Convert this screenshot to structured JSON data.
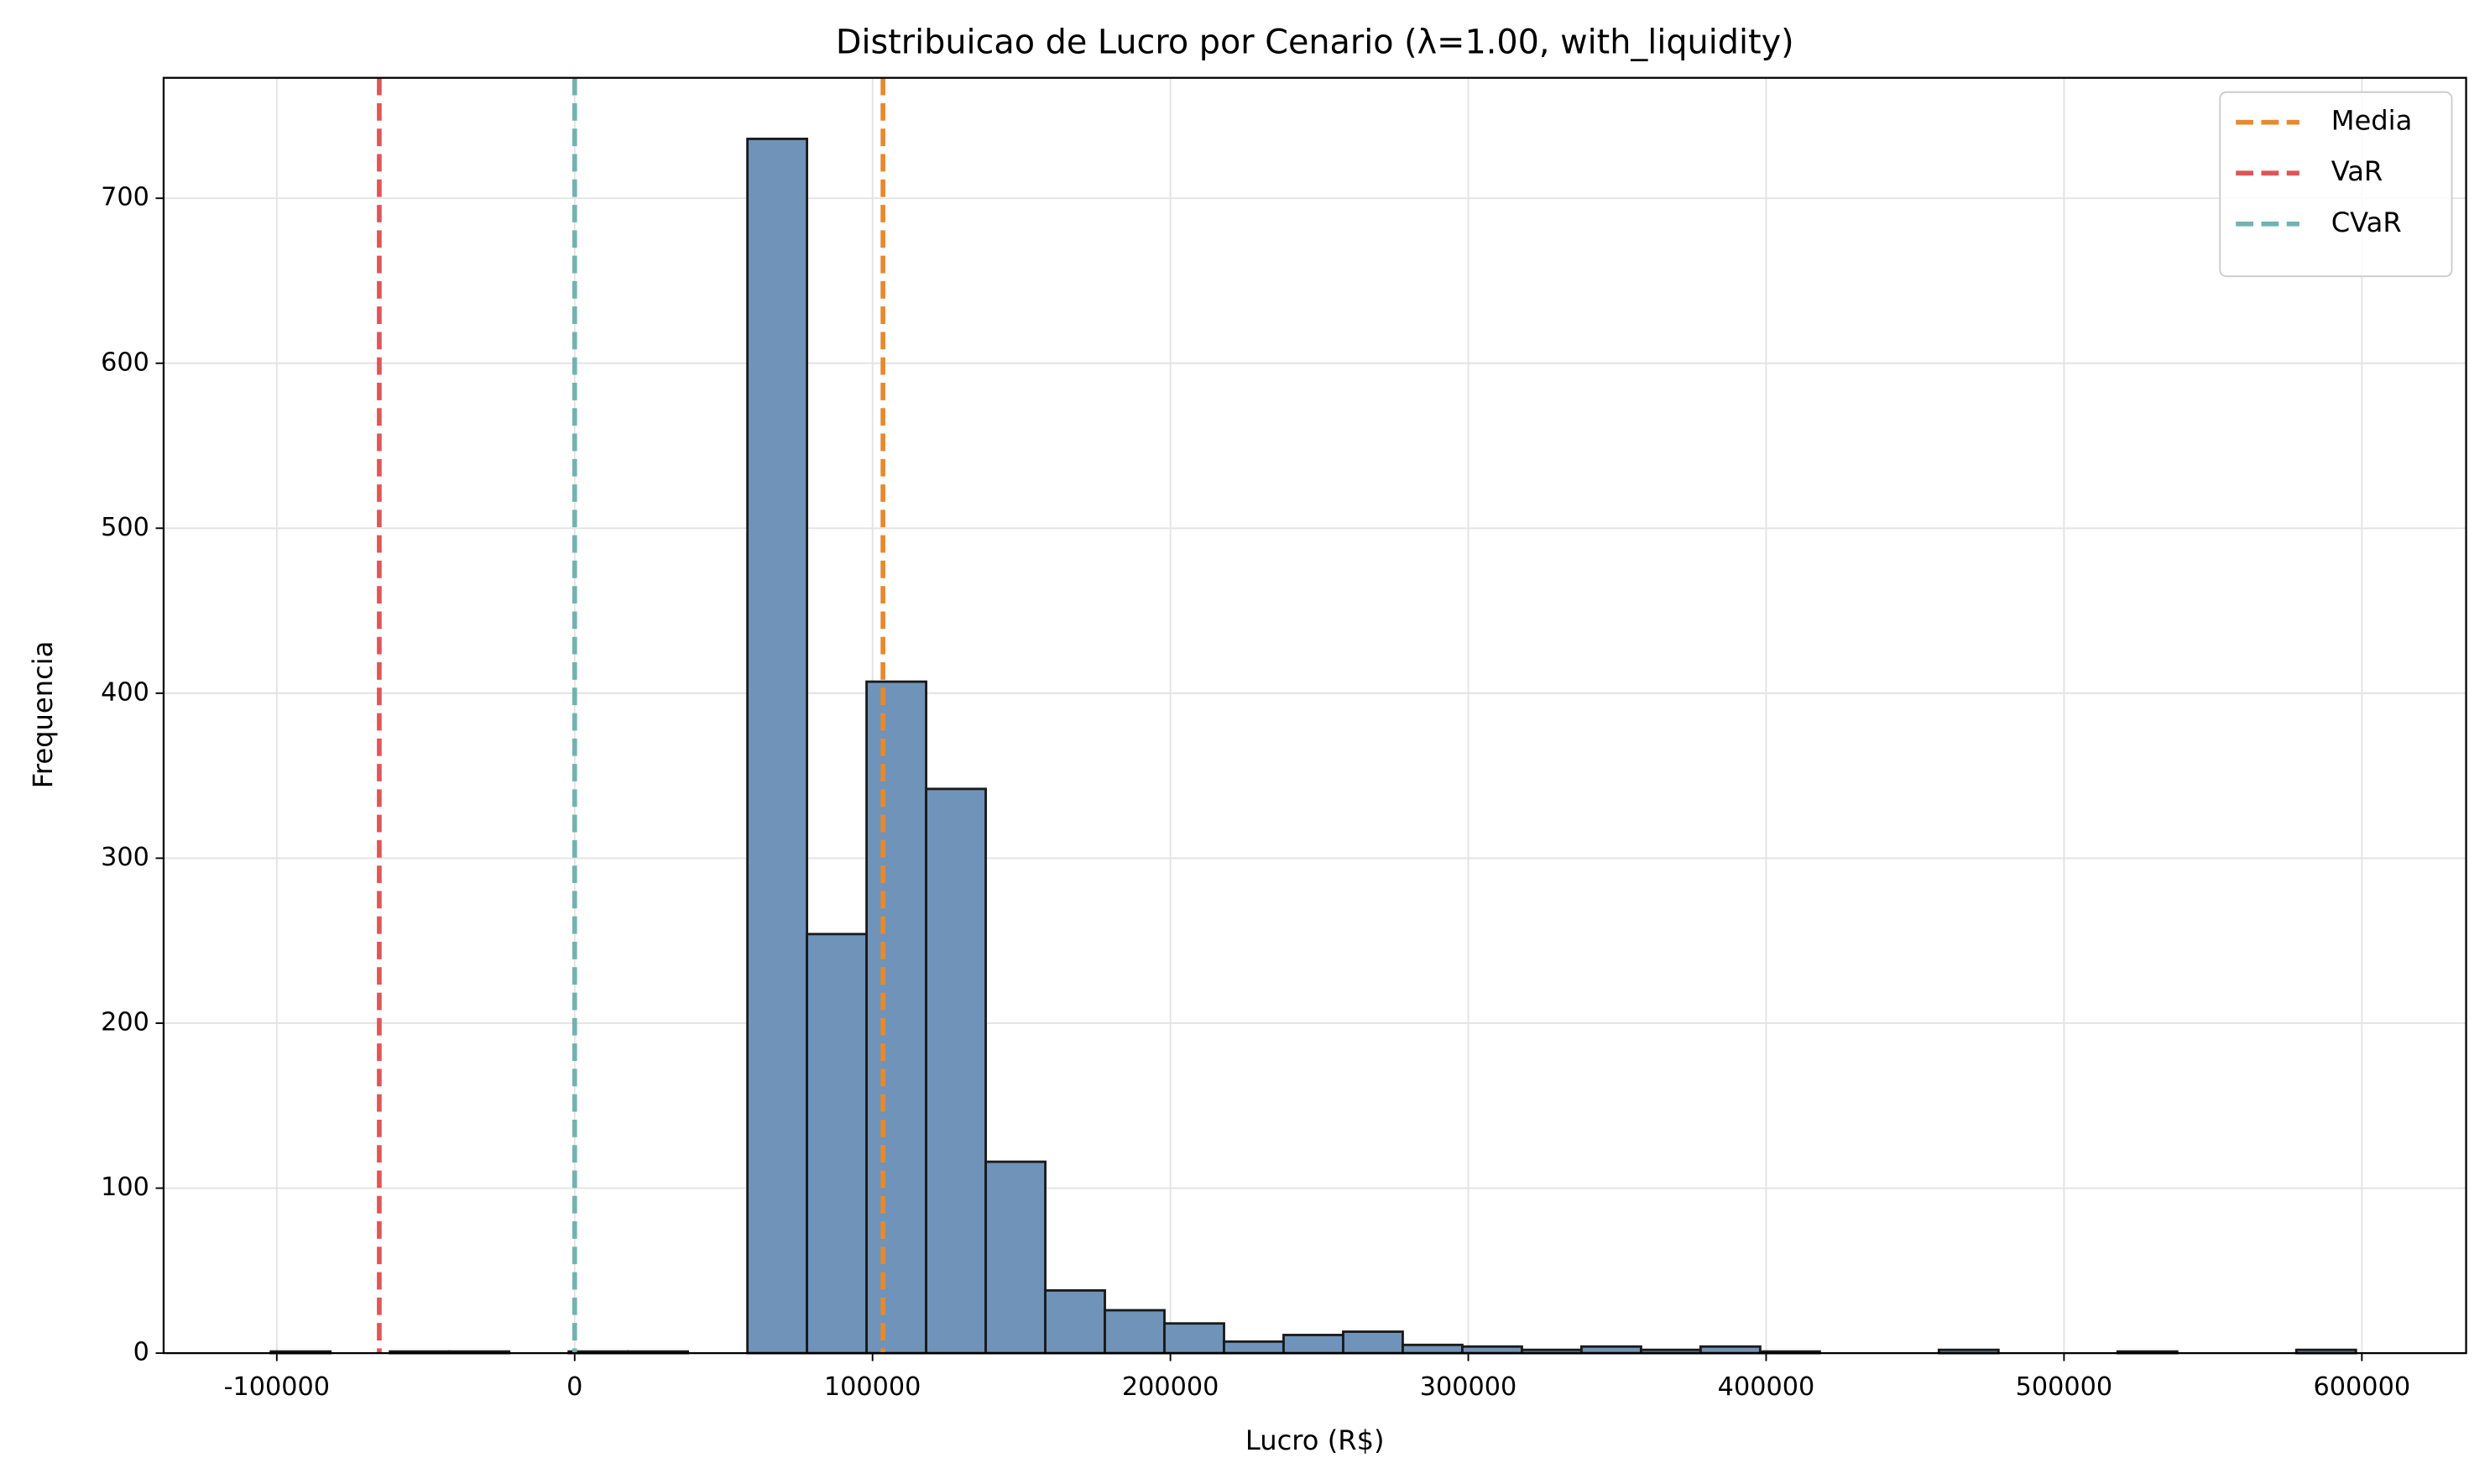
{
  "chart_data": {
    "type": "histogram",
    "title": "Distribuicao de Lucro por Cenario (λ=1.00, with_liquidity)",
    "x_label": "Lucro (R$)",
    "y_label": "Frequencia",
    "bins": [
      -102000,
      -82000,
      -62000,
      -42000,
      -22000,
      -2000,
      18000,
      38000,
      58000,
      78000,
      98000,
      118000,
      138000,
      158000,
      178000,
      198000,
      218000,
      238000,
      258000,
      278000,
      298000,
      318000,
      338000,
      358000,
      378000,
      398000,
      418000,
      438000,
      458000,
      478000,
      498000,
      518000,
      538000,
      558000,
      578000,
      598000
    ],
    "counts": [
      1,
      0,
      1,
      1,
      0,
      1,
      1,
      0,
      736,
      254,
      407,
      342,
      116,
      38,
      26,
      18,
      7,
      11,
      13,
      5,
      4,
      2,
      4,
      2,
      4,
      1,
      0,
      0,
      2,
      0,
      0,
      1,
      0,
      0,
      2
    ],
    "color": "#7093b9",
    "edge_color": "#1a1a1a",
    "vlines": [
      {
        "name": "Media",
        "color": "#e8892b",
        "value": 103500
      },
      {
        "name": "VaR",
        "color": "#e05558",
        "value": -65600
      },
      {
        "name": "CVaR",
        "color": "#72b3b0",
        "value": 0
      }
    ],
    "xlim": [
      -138000,
      635000
    ],
    "ylim": [
      0,
      773
    ],
    "xticks": [
      -100000,
      0,
      100000,
      200000,
      300000,
      400000,
      500000,
      600000
    ],
    "yticks": [
      0,
      100,
      200,
      300,
      400,
      500,
      600,
      700
    ],
    "grid": true,
    "legend_position": "upper-right"
  }
}
